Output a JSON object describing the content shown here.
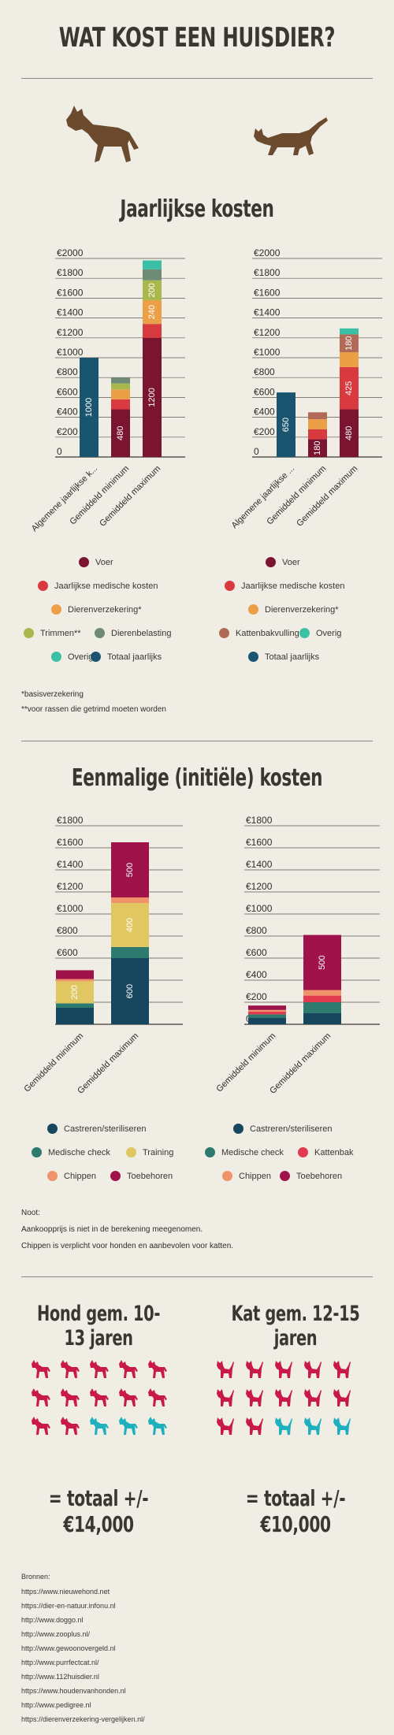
{
  "header": {
    "title": "WAT KOST EEN HUISDIER?"
  },
  "annual": {
    "title": "Jaarlijkse kosten",
    "footnotes": [
      "*basisverzekering",
      "**voor rassen die getrimd moeten worden"
    ]
  },
  "oneoff": {
    "title": "Eenmalige (initiële) kosten",
    "notes": [
      "Noot:",
      "Aankoopprijs is niet in de berekening meegenomen.",
      "Chippen is verplicht voor honden en aanbevolen voor katten."
    ]
  },
  "lifespan": {
    "dog_label": "Hond gem. 10-13 jaren",
    "cat_label": "Kat gem. 12-15 jaren",
    "dog_total": "= totaal +/- €14,000",
    "cat_total": "= totaal +/- €10,000",
    "dog_icons": {
      "count": 15,
      "colors": [
        "#c8194a",
        "#c8194a",
        "#c8194a",
        "#c8194a",
        "#c8194a",
        "#c8194a",
        "#c8194a",
        "#c8194a",
        "#c8194a",
        "#c8194a",
        "#c8194a",
        "#c8194a",
        "#1fb0c0",
        "#1fb0c0",
        "#1fb0c0"
      ]
    },
    "cat_icons": {
      "count": 15,
      "colors": [
        "#c8194a",
        "#c8194a",
        "#c8194a",
        "#c8194a",
        "#c8194a",
        "#c8194a",
        "#c8194a",
        "#c8194a",
        "#c8194a",
        "#c8194a",
        "#c8194a",
        "#c8194a",
        "#1fb0c0",
        "#1fb0c0",
        "#1fb0c0"
      ]
    }
  },
  "sources": {
    "heading": "Bronnen:",
    "links": [
      "https://www.nieuwehond.net",
      "https://dier-en-natuur.infonu.nl",
      "http://www.doggo.nl",
      "http://www.zooplus.nl/",
      "http://www.gewoonovergeld.nl",
      "http://www.purrfectcat.nl/",
      "http://www.112huisdier.nl",
      "https://www.houdenvanhonden.nl",
      "http://www.pedigree.nl",
      "https://dierenverzekering-vergelijken.nl/"
    ]
  },
  "colors": {
    "voer": "#7a1430",
    "medisch": "#d93a3f",
    "verzekering": "#eba047",
    "trimmen": "#a8b84c",
    "belasting": "#6e8b75",
    "overig": "#3bbfa5",
    "totaal": "#1a5570",
    "kattenbak": "#b06a55",
    "castreren": "#17475f",
    "check": "#2e7a6e",
    "training": "#e0c762",
    "chippen": "#f0936a",
    "toebehoren": "#a0134a",
    "kattenbak_oneoff": "#e23a4e",
    "animal": "#6b4a2e"
  },
  "chart_data": [
    {
      "type": "bar",
      "stacked": true,
      "categories": [
        "Algemene jaarlijkse k...",
        "Gemiddeld minimum",
        "Gemiddeld maximum"
      ],
      "ylim": [
        0,
        2000
      ],
      "yticks": [
        "0",
        "€200",
        "€400",
        "€600",
        "€800",
        "€1000",
        "€1200",
        "€1400",
        "€1600",
        "€1800",
        "€2000"
      ],
      "series": [
        {
          "name": "Totaal jaarlijks",
          "color": "#1a5570",
          "values": [
            1000,
            0,
            0
          ],
          "labels": [
            "1000",
            "",
            ""
          ]
        },
        {
          "name": "Voer",
          "color": "#7a1430",
          "values": [
            0,
            480,
            1200
          ],
          "labels": [
            "",
            "480",
            "1200"
          ]
        },
        {
          "name": "Jaarlijkse medische kosten",
          "color": "#d93a3f",
          "values": [
            0,
            100,
            140
          ],
          "labels": [
            "",
            "",
            ""
          ]
        },
        {
          "name": "Dierenverzekering*",
          "color": "#eba047",
          "values": [
            0,
            100,
            240
          ],
          "labels": [
            "",
            "",
            "240"
          ]
        },
        {
          "name": "Trimmen**",
          "color": "#a8b84c",
          "values": [
            0,
            60,
            200
          ],
          "labels": [
            "",
            "",
            "200"
          ]
        },
        {
          "name": "Dierenbelasting",
          "color": "#6e8b75",
          "values": [
            0,
            60,
            110
          ],
          "labels": [
            "",
            "",
            ""
          ]
        },
        {
          "name": "Overig",
          "color": "#3bbfa5",
          "values": [
            0,
            0,
            90
          ],
          "labels": [
            "",
            "",
            ""
          ]
        }
      ],
      "legend": [
        {
          "name": "Voer",
          "color": "#7a1430"
        },
        {
          "name": "Jaarlijkse medische kosten",
          "color": "#d93a3f"
        },
        {
          "name": "Dierenverzekering*",
          "color": "#eba047"
        },
        {
          "name": "Trimmen**",
          "color": "#a8b84c"
        },
        {
          "name": "Dierenbelasting",
          "color": "#6e8b75"
        },
        {
          "name": "Overig",
          "color": "#3bbfa5"
        },
        {
          "name": "Totaal jaarlijks",
          "color": "#1a5570"
        }
      ]
    },
    {
      "type": "bar",
      "stacked": true,
      "categories": [
        "Algemene jaarlijkse ...",
        "Gemiddeld minimum",
        "Gemiddeld maximum"
      ],
      "ylim": [
        0,
        2000
      ],
      "yticks": [
        "0",
        "€200",
        "€400",
        "€600",
        "€800",
        "€1000",
        "€1200",
        "€1400",
        "€1600",
        "€1800",
        "€2000"
      ],
      "series": [
        {
          "name": "Totaal jaarlijks",
          "color": "#1a5570",
          "values": [
            650,
            0,
            0
          ],
          "labels": [
            "650",
            "",
            ""
          ]
        },
        {
          "name": "Voer",
          "color": "#7a1430",
          "values": [
            0,
            180,
            480
          ],
          "labels": [
            "",
            "180",
            "480"
          ]
        },
        {
          "name": "Jaarlijkse medische kosten",
          "color": "#d93a3f",
          "values": [
            0,
            100,
            425
          ],
          "labels": [
            "",
            "",
            "425"
          ]
        },
        {
          "name": "Dierenverzekering*",
          "color": "#eba047",
          "values": [
            0,
            100,
            150
          ],
          "labels": [
            "",
            "",
            ""
          ]
        },
        {
          "name": "Kattenbakvulling",
          "color": "#b06a55",
          "values": [
            0,
            70,
            180
          ],
          "labels": [
            "",
            "",
            "180"
          ]
        },
        {
          "name": "Overig",
          "color": "#3bbfa5",
          "values": [
            0,
            0,
            60
          ],
          "labels": [
            "",
            "",
            ""
          ]
        }
      ],
      "legend": [
        {
          "name": "Voer",
          "color": "#7a1430"
        },
        {
          "name": "Jaarlijkse medische kosten",
          "color": "#d93a3f"
        },
        {
          "name": "Dierenverzekering*",
          "color": "#eba047"
        },
        {
          "name": "Kattenbakvulling",
          "color": "#b06a55"
        },
        {
          "name": "Overig",
          "color": "#3bbfa5"
        },
        {
          "name": "Totaal jaarlijks",
          "color": "#1a5570"
        }
      ]
    },
    {
      "type": "bar",
      "stacked": true,
      "categories": [
        "Gemiddeld minimum",
        "Gemiddeld maximum"
      ],
      "ylim": [
        0,
        1800
      ],
      "yticks": [
        "0",
        "€200",
        "€400",
        "€600",
        "€800",
        "€1000",
        "€1200",
        "€1400",
        "€1600",
        "€1800"
      ],
      "series": [
        {
          "name": "Castreren/steriliseren",
          "color": "#17475f",
          "values": [
            150,
            600
          ],
          "labels": [
            "",
            "600"
          ]
        },
        {
          "name": "Medische check",
          "color": "#2e7a6e",
          "values": [
            40,
            100
          ],
          "labels": [
            "",
            ""
          ]
        },
        {
          "name": "Training",
          "color": "#e0c762",
          "values": [
            200,
            400
          ],
          "labels": [
            "200",
            "400"
          ]
        },
        {
          "name": "Chippen",
          "color": "#f0936a",
          "values": [
            20,
            50
          ],
          "labels": [
            "",
            ""
          ]
        },
        {
          "name": "Toebehoren",
          "color": "#a0134a",
          "values": [
            80,
            500
          ],
          "labels": [
            "",
            "500"
          ]
        }
      ],
      "legend": [
        {
          "name": "Castreren/steriliseren",
          "color": "#17475f"
        },
        {
          "name": "Medische check",
          "color": "#2e7a6e"
        },
        {
          "name": "Training",
          "color": "#e0c762"
        },
        {
          "name": "Chippen",
          "color": "#f0936a"
        },
        {
          "name": "Toebehoren",
          "color": "#a0134a"
        }
      ]
    },
    {
      "type": "bar",
      "stacked": true,
      "categories": [
        "Gemiddeld minimum",
        "Gemiddeld maximum"
      ],
      "ylim": [
        0,
        1800
      ],
      "yticks": [
        "0",
        "€200",
        "€400",
        "€600",
        "€800",
        "€1000",
        "€1200",
        "€1400",
        "€1600",
        "€1800"
      ],
      "series": [
        {
          "name": "Castreren/steriliseren",
          "color": "#17475f",
          "values": [
            60,
            100
          ],
          "labels": [
            "",
            ""
          ]
        },
        {
          "name": "Medische check",
          "color": "#2e7a6e",
          "values": [
            30,
            100
          ],
          "labels": [
            "",
            ""
          ]
        },
        {
          "name": "Kattenbak",
          "color": "#e23a4e",
          "values": [
            25,
            60
          ],
          "labels": [
            "",
            ""
          ]
        },
        {
          "name": "Chippen",
          "color": "#f0936a",
          "values": [
            15,
            50
          ],
          "labels": [
            "",
            ""
          ]
        },
        {
          "name": "Toebehoren",
          "color": "#a0134a",
          "values": [
            40,
            500
          ],
          "labels": [
            "",
            "500"
          ]
        }
      ],
      "legend": [
        {
          "name": "Castreren/steriliseren",
          "color": "#17475f"
        },
        {
          "name": "Medische check",
          "color": "#2e7a6e"
        },
        {
          "name": "Kattenbak",
          "color": "#e23a4e"
        },
        {
          "name": "Chippen",
          "color": "#f0936a"
        },
        {
          "name": "Toebehoren",
          "color": "#a0134a"
        }
      ]
    }
  ]
}
